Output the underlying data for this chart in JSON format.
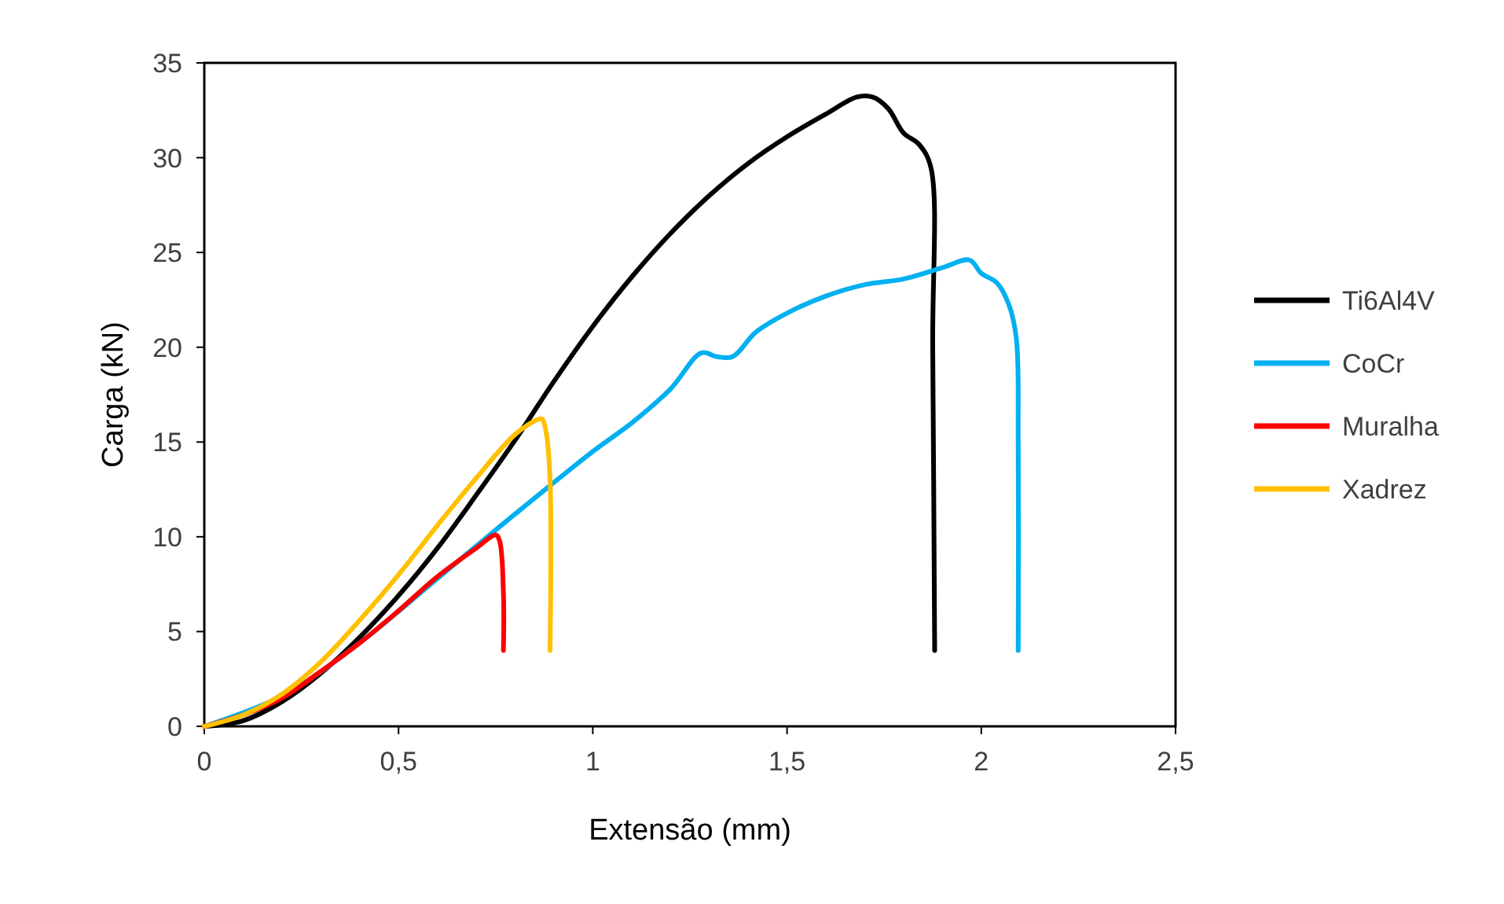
{
  "chart_data": {
    "type": "line",
    "xlabel": "Extensão (mm)",
    "ylabel": "Carga (kN)",
    "xlim": [
      0,
      2.5
    ],
    "ylim": [
      0,
      35
    ],
    "xticks": [
      0,
      {
        "value": 0.5,
        "label": "0,5"
      },
      1,
      {
        "value": 1.5,
        "label": "1,5"
      },
      2,
      {
        "value": 2.5,
        "label": "2,5"
      }
    ],
    "yticks": [
      0,
      5,
      10,
      15,
      20,
      25,
      30,
      35
    ],
    "grid": false,
    "legend": "right",
    "line_style": "solid",
    "series": [
      {
        "name": "Ti6Al4V",
        "color": "#000000",
        "x": [
          0,
          0.1,
          0.2,
          0.3,
          0.4,
          0.5,
          0.6,
          0.7,
          0.8,
          0.9,
          1.0,
          1.1,
          1.2,
          1.3,
          1.4,
          1.5,
          1.6,
          1.68,
          1.72,
          1.76,
          1.8,
          1.84,
          1.87,
          1.875,
          1.88
        ],
        "values": [
          0,
          0.3,
          1.3,
          2.8,
          4.7,
          6.9,
          9.4,
          12.2,
          15.1,
          18.2,
          21.1,
          23.7,
          26.0,
          28.0,
          29.7,
          31.1,
          32.3,
          33.2,
          33.2,
          32.6,
          31.3,
          30.7,
          29.5,
          20,
          4
        ]
      },
      {
        "name": "CoCr",
        "color": "#00b0f0",
        "x": [
          0,
          0.2,
          0.4,
          0.6,
          0.8,
          1.0,
          1.1,
          1.2,
          1.28,
          1.32,
          1.36,
          1.42,
          1.5,
          1.6,
          1.7,
          1.8,
          1.9,
          1.97,
          2.0,
          2.04,
          2.07,
          2.09,
          2.095,
          2.095
        ],
        "values": [
          0,
          1.6,
          4.4,
          7.8,
          11.2,
          14.5,
          16.0,
          17.8,
          19.7,
          19.5,
          19.5,
          20.8,
          21.8,
          22.7,
          23.3,
          23.6,
          24.2,
          24.6,
          23.9,
          23.4,
          22.3,
          20.5,
          15,
          4
        ]
      },
      {
        "name": "Muralha",
        "color": "#ff0000",
        "x": [
          0,
          0.1,
          0.2,
          0.3,
          0.4,
          0.5,
          0.6,
          0.7,
          0.75,
          0.76,
          0.77,
          0.77
        ],
        "values": [
          0,
          0.6,
          1.5,
          2.9,
          4.4,
          6.1,
          7.9,
          9.4,
          10.1,
          9.8,
          7,
          4
        ]
      },
      {
        "name": "Xadrez",
        "color": "#ffc000",
        "x": [
          0,
          0.1,
          0.2,
          0.3,
          0.4,
          0.5,
          0.6,
          0.7,
          0.8,
          0.86,
          0.87,
          0.88,
          0.89,
          0.89
        ],
        "values": [
          0,
          0.6,
          1.7,
          3.4,
          5.6,
          8.0,
          10.6,
          13.1,
          15.4,
          16.2,
          16.2,
          15.5,
          13,
          4
        ]
      }
    ]
  }
}
